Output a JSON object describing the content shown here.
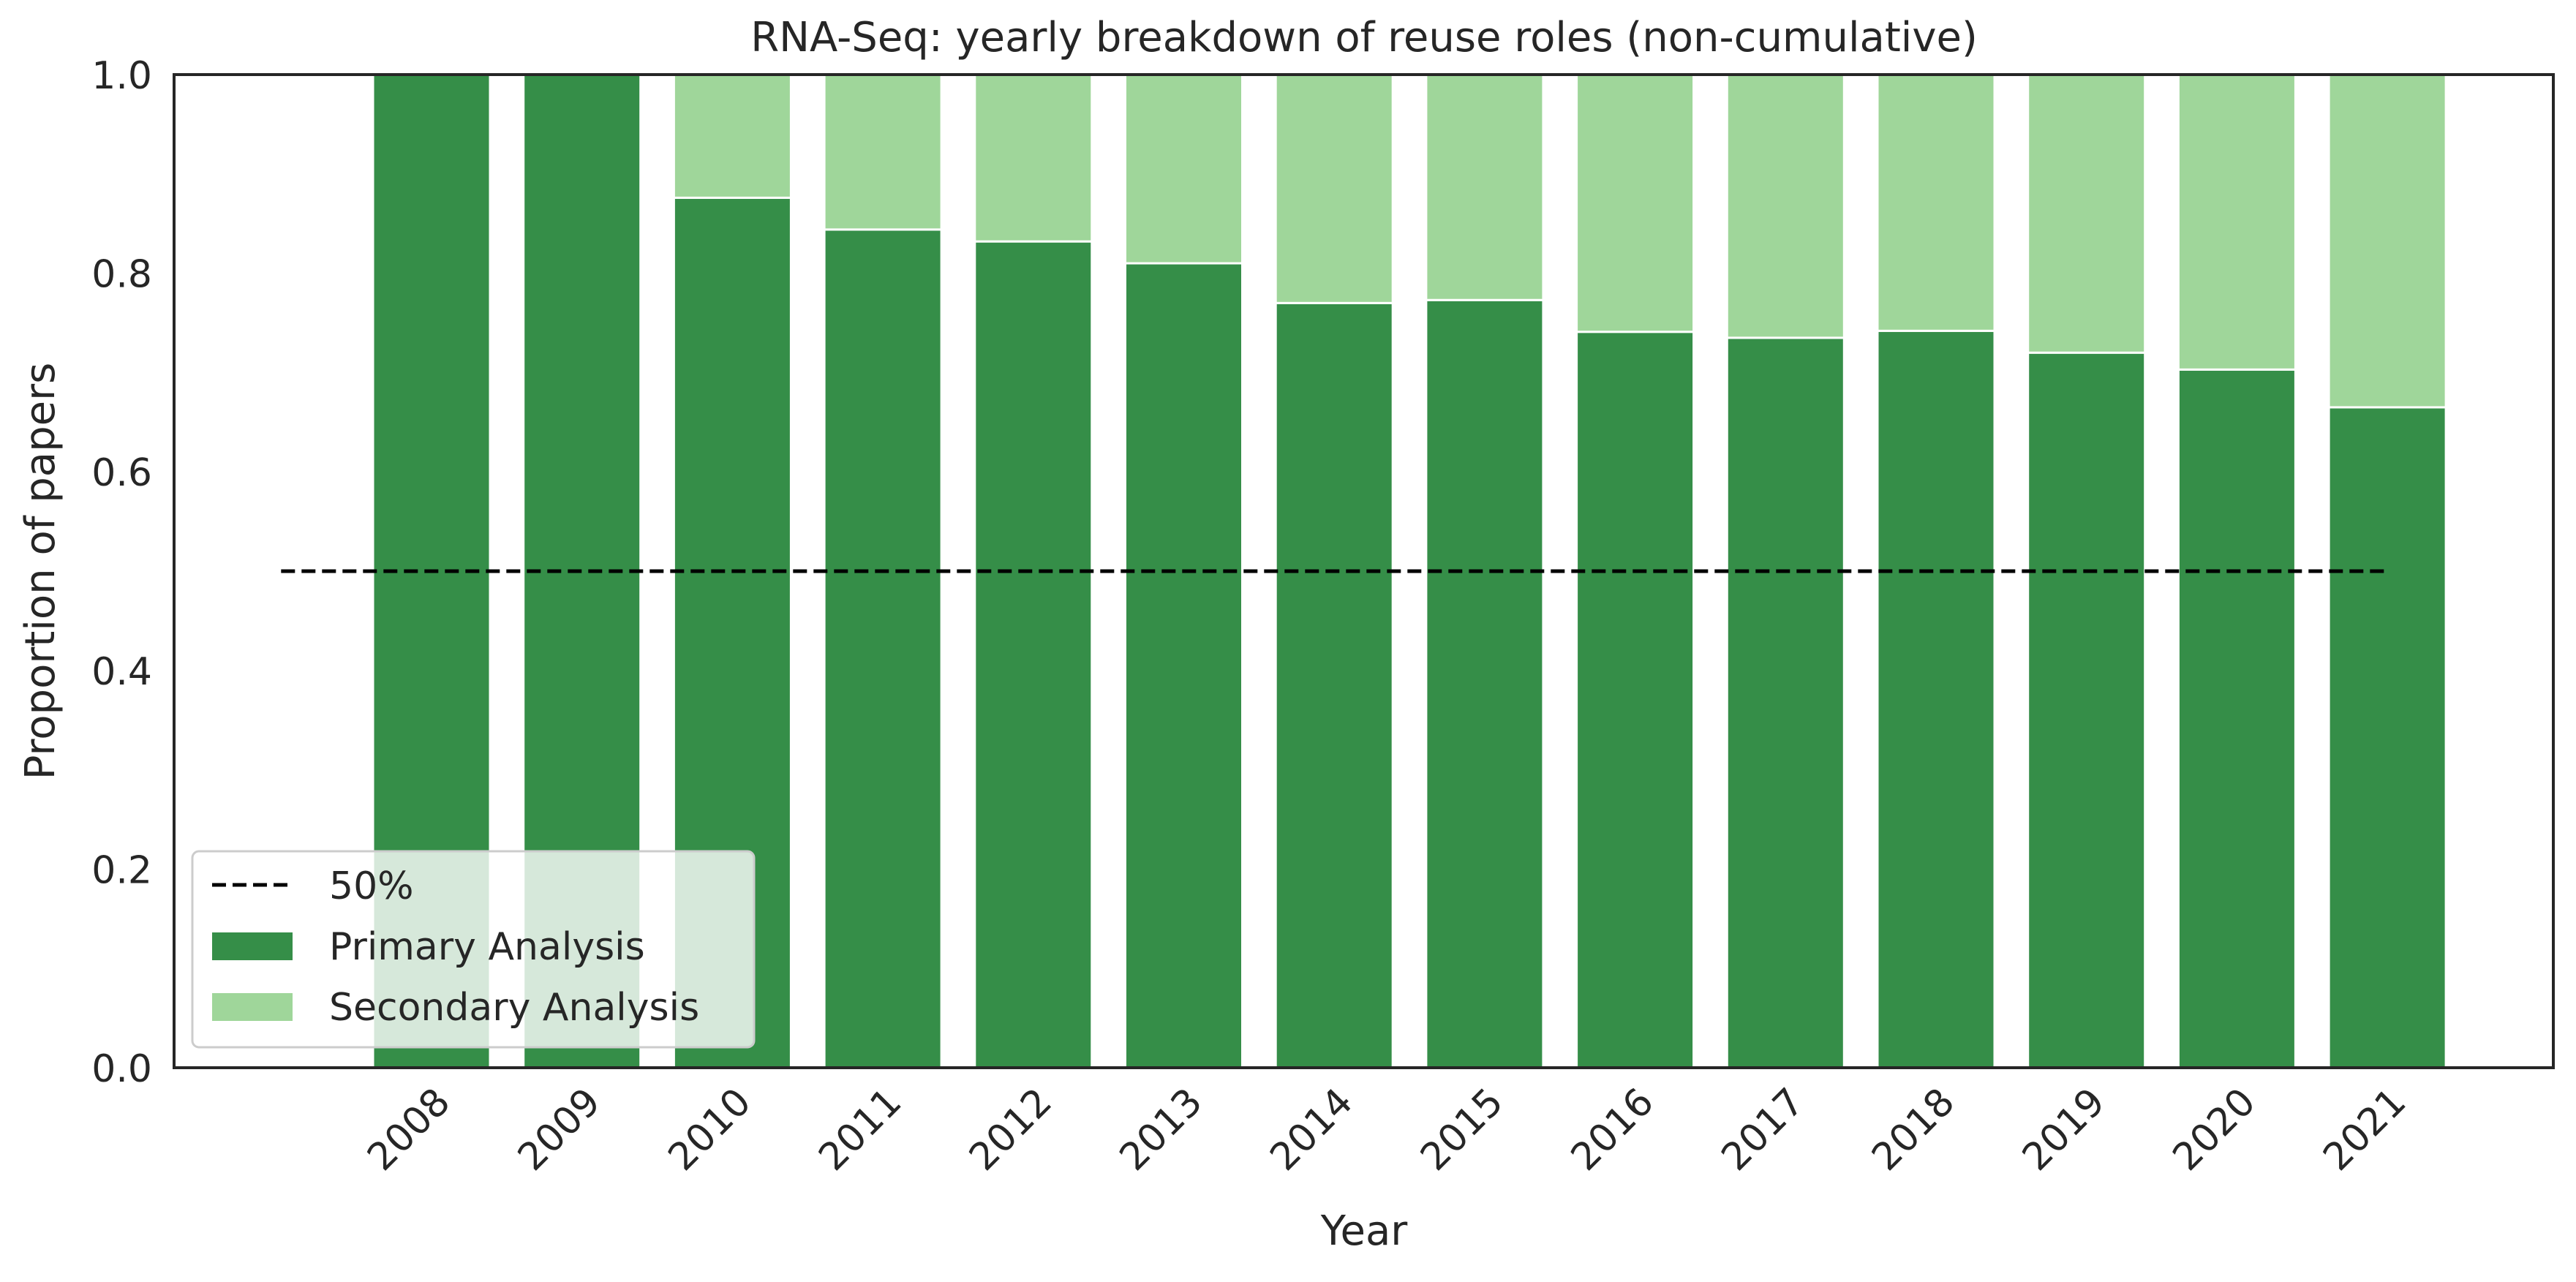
{
  "chart_data": {
    "type": "bar",
    "stacked": true,
    "title": "RNA-Seq: yearly breakdown of reuse roles (non-cumulative)",
    "xlabel": "Year",
    "ylabel": "Proportion of papers",
    "ylim": [
      0,
      1
    ],
    "yticks": [
      "0.0",
      "0.2",
      "0.4",
      "0.6",
      "0.8",
      "1.0"
    ],
    "categories": [
      "2008",
      "2009",
      "2010",
      "2011",
      "2012",
      "2013",
      "2014",
      "2015",
      "2016",
      "2017",
      "2018",
      "2019",
      "2020",
      "2021"
    ],
    "series": [
      {
        "name": "Primary Analysis",
        "color": "#358e48",
        "values": [
          1.0,
          1.0,
          0.876,
          0.844,
          0.832,
          0.81,
          0.77,
          0.773,
          0.741,
          0.735,
          0.742,
          0.72,
          0.703,
          0.665
        ]
      },
      {
        "name": "Secondary Analysis",
        "color": "#9fd69a",
        "values": [
          0.0,
          0.0,
          0.124,
          0.156,
          0.168,
          0.19,
          0.23,
          0.227,
          0.259,
          0.265,
          0.258,
          0.28,
          0.297,
          0.335
        ]
      }
    ],
    "reference_line": {
      "name": "50%",
      "value": 0.5,
      "style": "dashed",
      "color": "#000000"
    },
    "legend": {
      "position": "lower-left",
      "entries": [
        "50%",
        "Primary Analysis",
        "Secondary Analysis"
      ]
    },
    "grid": false
  }
}
